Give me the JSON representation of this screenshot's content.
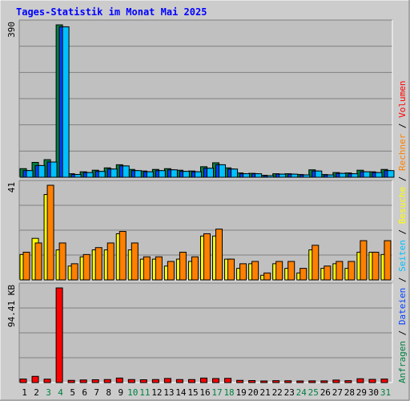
{
  "title": "Tages-Statistik im Monat Mai 2025",
  "colors": {
    "background": "#cccccc",
    "plot_bg": "#c0c0c0",
    "grid": "#808080",
    "title": "#0000ff",
    "hits": "#008040",
    "files": "#0040ff",
    "pages": "#00c0ff",
    "visits": "#ffff00",
    "sites": "#ff8000",
    "kbytes": "#ff0000",
    "day_normal": "#000000",
    "day_weekend": "#008040"
  },
  "legend_right": {
    "top": [
      {
        "text": "Anfragen",
        "color": "#008040"
      },
      {
        "text": " / ",
        "color": "#000000"
      },
      {
        "text": "Dateien",
        "color": "#0040ff"
      },
      {
        "text": " / ",
        "color": "#000000"
      },
      {
        "text": "Seiten",
        "color": "#00c0ff"
      },
      {
        "text": " / ",
        "color": "#000000"
      },
      {
        "text": "Besuche",
        "color": "#ffff00"
      },
      {
        "text": " / ",
        "color": "#000000"
      },
      {
        "text": "Rechner",
        "color": "#ff8000"
      },
      {
        "text": " / ",
        "color": "#000000"
      },
      {
        "text": "Volumen",
        "color": "#ff0000"
      }
    ]
  },
  "chart_data": [
    {
      "type": "bar",
      "panel": "hits-files-pages",
      "ymax": 390,
      "ymax_label": "390",
      "categories": [
        "1",
        "2",
        "3",
        "4",
        "5",
        "6",
        "7",
        "8",
        "9",
        "10",
        "11",
        "12",
        "13",
        "14",
        "15",
        "16",
        "17",
        "18",
        "19",
        "20",
        "21",
        "22",
        "23",
        "24",
        "25",
        "26",
        "27",
        "28",
        "29",
        "30",
        "31"
      ],
      "weekend": [
        3,
        4,
        10,
        11,
        17,
        18,
        24,
        25,
        31
      ],
      "series": [
        {
          "name": "Anfragen",
          "color": "#008040",
          "values": [
            22,
            38,
            45,
            390,
            9,
            14,
            18,
            24,
            32,
            20,
            16,
            20,
            22,
            18,
            16,
            27,
            37,
            24,
            11,
            10,
            5,
            9,
            9,
            7,
            19,
            7,
            12,
            11,
            18,
            14,
            20
          ]
        },
        {
          "name": "Dateien",
          "color": "#0040ff",
          "values": [
            17,
            30,
            39,
            385,
            7,
            12,
            15,
            21,
            29,
            17,
            14,
            17,
            19,
            15,
            14,
            23,
            32,
            21,
            9,
            9,
            4,
            8,
            8,
            6,
            16,
            6,
            10,
            9,
            14,
            12,
            17
          ]
        },
        {
          "name": "Seiten",
          "color": "#00c0ff",
          "values": [
            17,
            30,
            39,
            385,
            7,
            12,
            15,
            21,
            29,
            17,
            14,
            17,
            19,
            15,
            14,
            23,
            32,
            21,
            9,
            9,
            4,
            8,
            8,
            6,
            16,
            6,
            10,
            9,
            14,
            12,
            17
          ]
        }
      ]
    },
    {
      "type": "bar",
      "panel": "visits-sites",
      "ymax": 41,
      "ymax_label": "41",
      "categories": [
        "1",
        "2",
        "3",
        "4",
        "5",
        "6",
        "7",
        "8",
        "9",
        "10",
        "11",
        "12",
        "13",
        "14",
        "15",
        "16",
        "17",
        "18",
        "19",
        "20",
        "21",
        "22",
        "23",
        "24",
        "25",
        "26",
        "27",
        "28",
        "29",
        "30",
        "31"
      ],
      "series": [
        {
          "name": "Besuche",
          "color": "#ffff00",
          "values": [
            11,
            18,
            37,
            13,
            6,
            10,
            13,
            13,
            20,
            13,
            9,
            9,
            6,
            9,
            8,
            19,
            19,
            9,
            5,
            7,
            2,
            7,
            5,
            3,
            13,
            5,
            7,
            5,
            12,
            12,
            11
          ]
        },
        {
          "name": "Rechner",
          "color": "#ff8000",
          "values": [
            12,
            16,
            41,
            16,
            7,
            11,
            14,
            16,
            21,
            16,
            10,
            10,
            8,
            12,
            10,
            20,
            22,
            9,
            7,
            8,
            3,
            8,
            8,
            5,
            15,
            6,
            8,
            8,
            17,
            12,
            17
          ]
        }
      ]
    },
    {
      "type": "bar",
      "panel": "volume",
      "ymax": 94.41,
      "ymax_label": "94.41 KB",
      "categories": [
        "1",
        "2",
        "3",
        "4",
        "5",
        "6",
        "7",
        "8",
        "9",
        "10",
        "11",
        "12",
        "13",
        "14",
        "15",
        "16",
        "17",
        "18",
        "19",
        "20",
        "21",
        "22",
        "23",
        "24",
        "25",
        "26",
        "27",
        "28",
        "29",
        "30",
        "31"
      ],
      "series": [
        {
          "name": "Volumen",
          "color": "#ff0000",
          "values": [
            3.5,
            6.2,
            3.4,
            94.41,
            2.2,
            2.6,
            2.8,
            3.0,
            4.5,
            3.0,
            2.8,
            3.0,
            4.1,
            3.0,
            3.0,
            4.5,
            4.0,
            4.2,
            2.2,
            2.0,
            1.6,
            1.9,
            1.8,
            1.6,
            1.7,
            1.7,
            2.5,
            1.9,
            3.8,
            3.2,
            3.5
          ]
        }
      ]
    }
  ]
}
